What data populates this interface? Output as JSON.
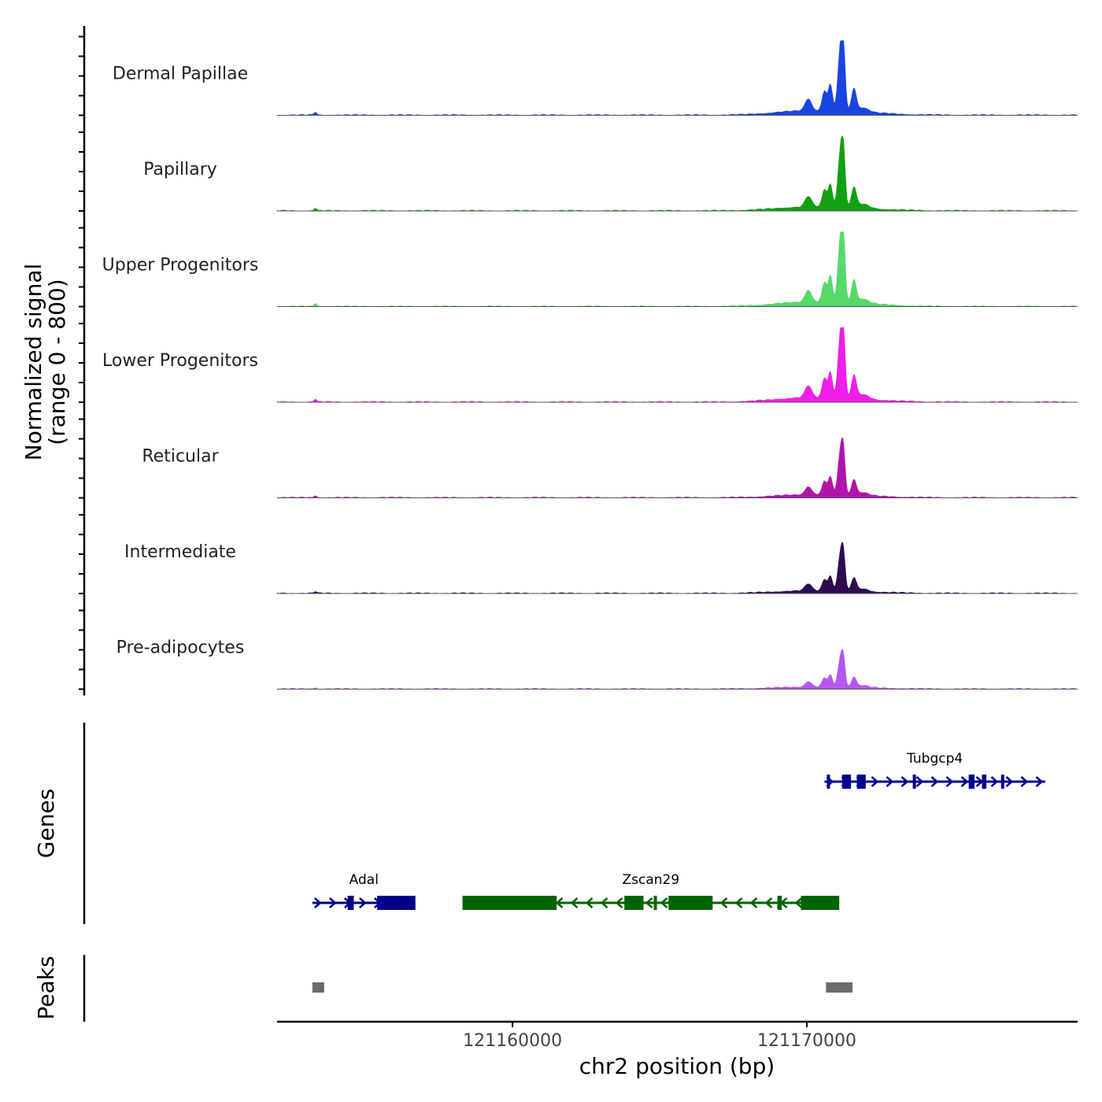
{
  "chart_data": {
    "type": "area",
    "title": "",
    "xlabel": "chr2 position (bp)",
    "ylabel_line1": "Normalized signal",
    "ylabel_line2": "(range 0 - 800)",
    "xlim": [
      121152000,
      121179200
    ],
    "x_ticks": [
      121160000,
      121170000
    ],
    "x_tick_labels": [
      "121160000",
      "121170000"
    ],
    "y_range": [
      0,
      800
    ],
    "peak_model": {
      "bumps": [
        {
          "center": 121169500,
          "width": 900,
          "height": 0.025
        },
        {
          "center": 121170050,
          "width": 110,
          "height": 0.16
        },
        {
          "center": 121170600,
          "width": 80,
          "height": 0.26
        },
        {
          "center": 121170800,
          "width": 70,
          "height": 0.34
        },
        {
          "center": 121171150,
          "width": 90,
          "height": 0.86
        },
        {
          "center": 121171250,
          "width": 60,
          "height": 0.55
        },
        {
          "center": 121171600,
          "width": 80,
          "height": 0.3
        },
        {
          "center": 121171900,
          "width": 200,
          "height": 0.06
        },
        {
          "center": 121171000,
          "width": 1300,
          "height": 0.05
        },
        {
          "center": 121153300,
          "width": 45,
          "height": 0.04
        }
      ]
    },
    "series": [
      {
        "name": "Dermal Papillae",
        "color": "#1a44e0",
        "scale": 1.0
      },
      {
        "name": "Papillary",
        "color": "#11a011",
        "scale": 0.88
      },
      {
        "name": "Upper Progenitors",
        "color": "#57d96a",
        "scale": 1.0
      },
      {
        "name": "Lower Progenitors",
        "color": "#f01ee8",
        "scale": 1.0
      },
      {
        "name": "Reticular",
        "color": "#b014a8",
        "scale": 0.68
      },
      {
        "name": "Intermediate",
        "color": "#2e0a4f",
        "scale": 0.58
      },
      {
        "name": "Pre-adipocytes",
        "color": "#b457f0",
        "scale": 0.45
      }
    ],
    "genes_track_label": "Genes",
    "peaks_track_label": "Peaks",
    "genes": [
      {
        "name": "Adal",
        "strand": "+",
        "color": "#00008b",
        "row": 2,
        "start": 121153200,
        "end": 121156700,
        "exons": [
          [
            121154400,
            121154450
          ],
          [
            121154500,
            121154580
          ],
          [
            121155400,
            121156700
          ]
        ]
      },
      {
        "name": "Zscan29",
        "strand": "-",
        "color": "#006400",
        "row": 2,
        "start": 121158300,
        "end": 121171100,
        "exons": [
          [
            121158300,
            121161500
          ],
          [
            121163800,
            121164450
          ],
          [
            121164800,
            121164860
          ],
          [
            121165300,
            121166800
          ],
          [
            121169000,
            121169150
          ],
          [
            121169800,
            121171100
          ]
        ]
      },
      {
        "name": "Tubgcp4",
        "strand": "+",
        "color": "#00008b",
        "row": 1,
        "start": 121170600,
        "end": 121178100,
        "exons": [
          [
            121170680,
            121170720
          ],
          [
            121171200,
            121171500
          ],
          [
            121171700,
            121172000
          ],
          [
            121173600,
            121173700
          ],
          [
            121175500,
            121175700
          ],
          [
            121175950,
            121176100
          ],
          [
            121176600,
            121176680
          ]
        ]
      }
    ],
    "peaks": [
      {
        "start": 121153200,
        "end": 121153600
      },
      {
        "start": 121170650,
        "end": 121171550
      }
    ]
  }
}
